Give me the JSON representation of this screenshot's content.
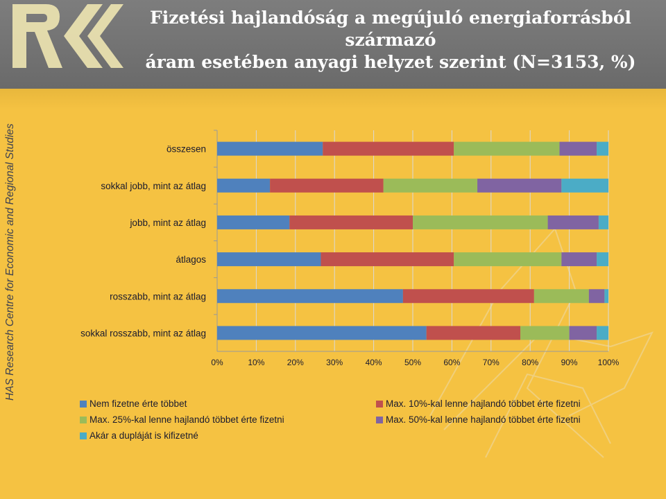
{
  "header": {
    "title_line1": "Fizetési hajlandóság a megújuló energiaforrásból származó",
    "title_line2": "áram esetében anyagi helyzet szerint (N=3153, %)"
  },
  "sidebar": {
    "text": "HAS Research Centre for Economic and Regional Studies"
  },
  "colors": {
    "header": "#737373",
    "background": "#f5c242"
  },
  "chart_data": {
    "type": "bar",
    "orientation": "horizontal",
    "stacked": true,
    "categories": [
      "összesen",
      "sokkal jobb, mint az átlag",
      "jobb, mint az átlag",
      "átlagos",
      "rosszabb, mint az átlag",
      "sokkal rosszabb, mint az átlag"
    ],
    "x_tick_labels": [
      "0%",
      "10%",
      "20%",
      "30%",
      "40%",
      "50%",
      "60%",
      "70%",
      "80%",
      "90%",
      "100%"
    ],
    "xlim": [
      0,
      100
    ],
    "grid": true,
    "legend_position": "bottom",
    "series": [
      {
        "name": "Nem fizetne érte többet",
        "color": "#4f81bd",
        "values": [
          27,
          13.5,
          18.5,
          26.5,
          47.5,
          53.5
        ]
      },
      {
        "name": "Max. 10%-kal lenne hajlandó többet érte fizetni",
        "color": "#c0504d",
        "values": [
          33.5,
          29,
          31.5,
          34,
          33.5,
          24
        ]
      },
      {
        "name": "Max. 25%-kal lenne hajlandó többet érte fizetni",
        "color": "#9bbb59",
        "values": [
          27,
          24,
          34.5,
          27.5,
          14,
          12.5
        ]
      },
      {
        "name": "Max. 50%-kal lenne hajlandó többet érte fizetni",
        "color": "#8064a2",
        "values": [
          9.5,
          21.5,
          13,
          9,
          4,
          7
        ]
      },
      {
        "name": "Akár a dupláját is kifizetné",
        "color": "#4bacc6",
        "values": [
          3,
          12,
          2.5,
          3,
          1,
          3
        ]
      }
    ]
  }
}
